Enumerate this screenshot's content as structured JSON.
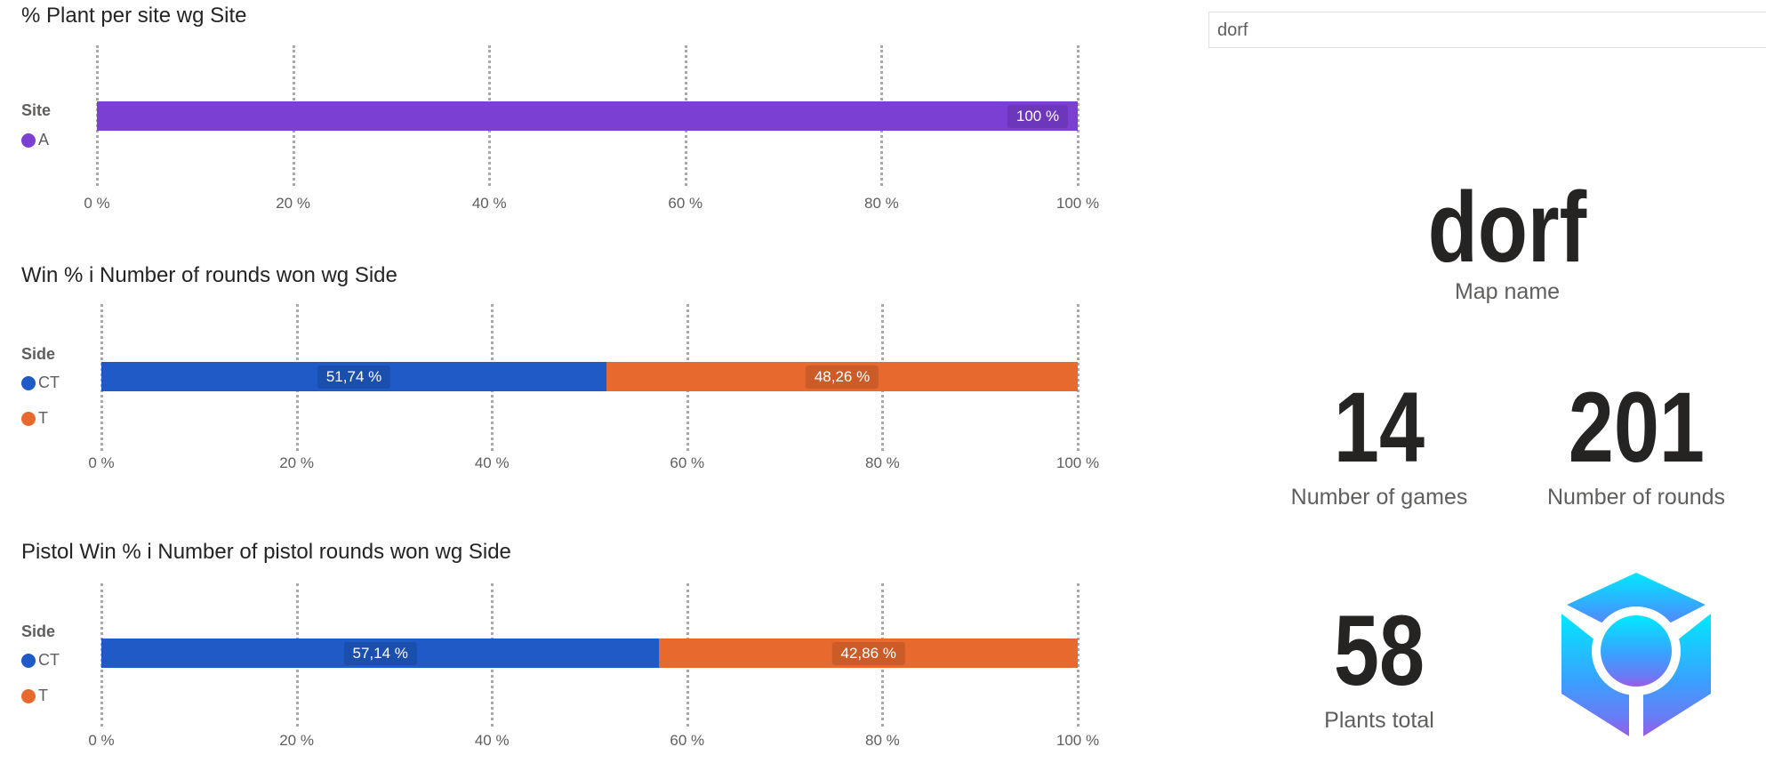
{
  "search": {
    "value": "dorf"
  },
  "cards": {
    "map_name": {
      "value": "dorf",
      "label": "Map name"
    },
    "games": {
      "value": "14",
      "label": "Number of games"
    },
    "rounds": {
      "value": "201",
      "label": "Number of rounds"
    },
    "plants": {
      "value": "58",
      "label": "Plants total"
    }
  },
  "logo": {
    "icon": "cube-target-logo"
  },
  "chart_data": [
    {
      "type": "bar",
      "stacked": true,
      "orientation": "horizontal",
      "title": "% Plant per site wg Site",
      "legend_title": "Site",
      "xlim": [
        0,
        100
      ],
      "ticks": [
        "0 %",
        "20 %",
        "40 %",
        "60 %",
        "80 %",
        "100 %"
      ],
      "series": [
        {
          "name": "A",
          "color": "#7B3FD4",
          "value": 100,
          "label": "100 %"
        }
      ]
    },
    {
      "type": "bar",
      "stacked": true,
      "orientation": "horizontal",
      "title": "Win % i Number of rounds won wg Side",
      "legend_title": "Side",
      "xlim": [
        0,
        100
      ],
      "ticks": [
        "0 %",
        "20 %",
        "40 %",
        "60 %",
        "80 %",
        "100 %"
      ],
      "series": [
        {
          "name": "CT",
          "color": "#1F5AC6",
          "value": 51.74,
          "label": "51,74 %"
        },
        {
          "name": "T",
          "color": "#E8692E",
          "value": 48.26,
          "label": "48,26 %"
        }
      ]
    },
    {
      "type": "bar",
      "stacked": true,
      "orientation": "horizontal",
      "title": "Pistol Win % i Number of pistol rounds won wg Side",
      "legend_title": "Side",
      "xlim": [
        0,
        100
      ],
      "ticks": [
        "0 %",
        "20 %",
        "40 %",
        "60 %",
        "80 %",
        "100 %"
      ],
      "series": [
        {
          "name": "CT",
          "color": "#1F5AC6",
          "value": 57.14,
          "label": "57,14 %"
        },
        {
          "name": "T",
          "color": "#E8692E",
          "value": 42.86,
          "label": "42,86 %"
        }
      ]
    }
  ]
}
